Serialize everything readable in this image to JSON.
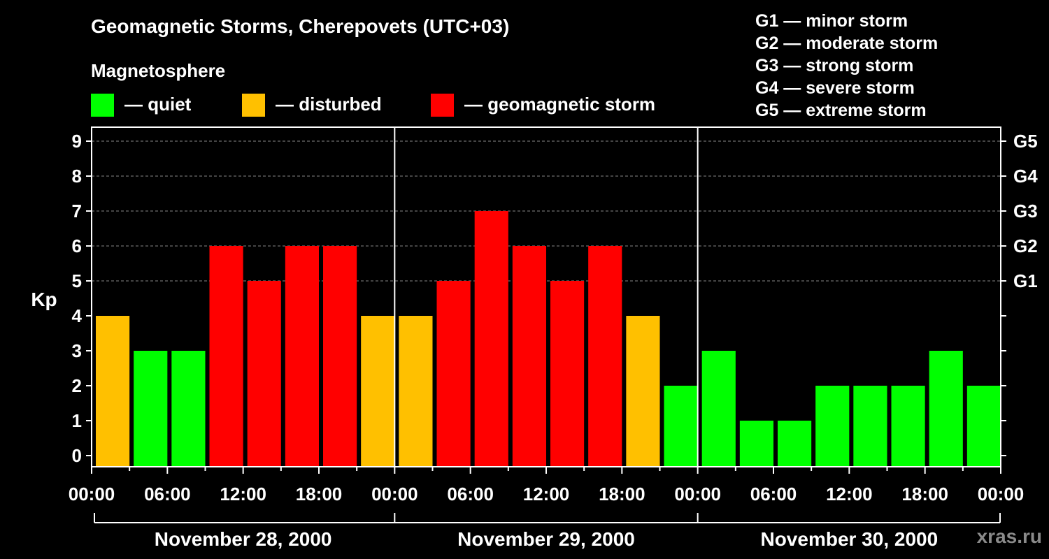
{
  "header": {
    "title": "Geomagnetic Storms, Cherepovets (UTC+03)",
    "section": "Magnetosphere"
  },
  "legend": [
    {
      "label": "— quiet",
      "color": "#00ff00"
    },
    {
      "label": "— disturbed",
      "color": "#ffc000"
    },
    {
      "label": "— geomagnetic storm",
      "color": "#ff0000"
    }
  ],
  "storm_scale": [
    "G1 — minor storm",
    "G2 — moderate storm",
    "G3 — strong storm",
    "G4 — severe storm",
    "G5 — extreme storm"
  ],
  "brand": "xras.ru",
  "chart_data": {
    "type": "bar",
    "ylabel": "Kp",
    "xlabel": "",
    "ylim": [
      0,
      9
    ],
    "y_ticks": [
      0,
      1,
      2,
      3,
      4,
      5,
      6,
      7,
      8,
      9
    ],
    "right_axis": [
      {
        "value": 5,
        "label": "G1"
      },
      {
        "value": 6,
        "label": "G2"
      },
      {
        "value": 7,
        "label": "G3"
      },
      {
        "value": 8,
        "label": "G4"
      },
      {
        "value": 9,
        "label": "G5"
      }
    ],
    "grid_values": [
      5,
      6,
      7,
      8,
      9
    ],
    "days": [
      "November 28, 2000",
      "November 29, 2000",
      "November 30, 2000"
    ],
    "x_tick_labels": [
      "00:00",
      "06:00",
      "12:00",
      "18:00",
      "00:00",
      "06:00",
      "12:00",
      "18:00",
      "00:00",
      "06:00",
      "12:00",
      "18:00",
      "00:00"
    ],
    "series": [
      {
        "values": [
          4,
          3,
          3,
          6,
          5,
          6,
          6,
          4,
          4,
          5,
          7,
          6,
          5,
          6,
          4,
          2,
          3,
          1,
          1,
          2,
          2,
          2,
          3,
          2
        ]
      }
    ],
    "colors": {
      "quiet": "#00ff00",
      "disturbed": "#ffc000",
      "storm": "#ff0000"
    },
    "thresholds": {
      "disturbed": 4,
      "storm": 5
    }
  }
}
